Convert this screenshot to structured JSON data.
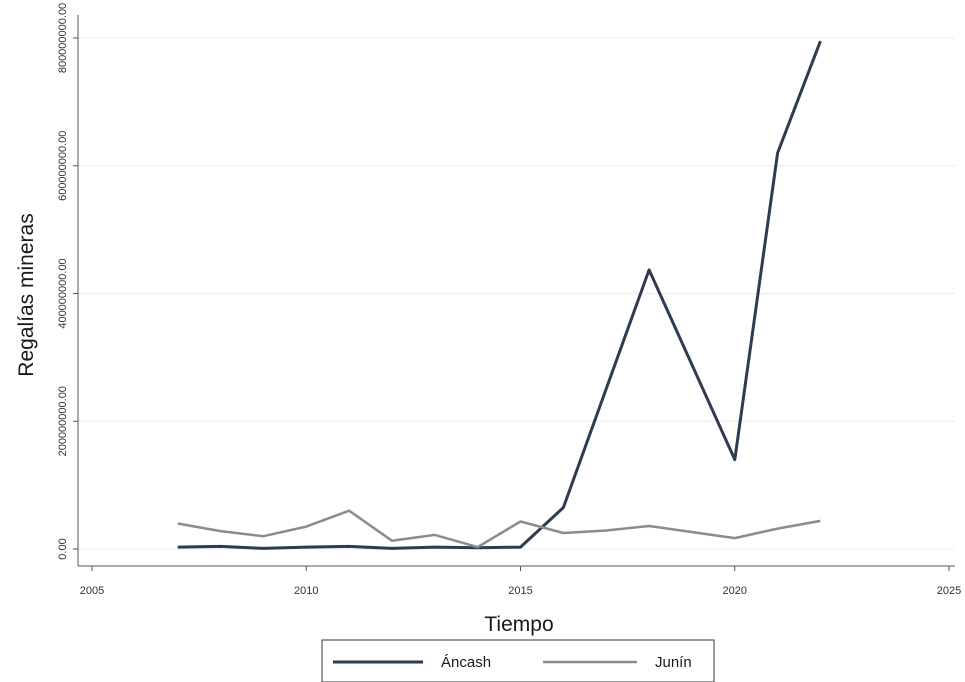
{
  "chart_data": {
    "type": "line",
    "title": "",
    "xlabel": "Tiempo",
    "ylabel": "Regalías mineras",
    "xlim": [
      2005,
      2025
    ],
    "ylim": [
      0,
      800000000
    ],
    "x_ticks": [
      2005,
      2010,
      2015,
      2020,
      2025
    ],
    "x_tick_labels": [
      "2005",
      "2010",
      "2015",
      "2020",
      "2025"
    ],
    "y_ticks": [
      0,
      200000000,
      400000000,
      600000000,
      800000000
    ],
    "y_tick_labels": [
      "0.00",
      "200000000.00",
      "400000000.00",
      "600000000.00",
      "800000000.00"
    ],
    "grid": true,
    "legend_position": "bottom",
    "series": [
      {
        "name": "Áncash",
        "color": "#2e3b55",
        "points": [
          [
            2007,
            3000000
          ],
          [
            2008,
            4000000
          ],
          [
            2009,
            1000000
          ],
          [
            2010,
            3000000
          ],
          [
            2011,
            4000000
          ],
          [
            2012,
            1000000
          ],
          [
            2013,
            3000000
          ],
          [
            2014,
            2000000
          ],
          [
            2015,
            3000000
          ],
          [
            2016,
            65000000
          ],
          [
            2018,
            437000000
          ],
          [
            2020,
            140000000
          ],
          [
            2021,
            620000000
          ],
          [
            2022,
            795000000
          ]
        ]
      },
      {
        "name": "Junín",
        "color": "#8c8c8c",
        "points": [
          [
            2007,
            40000000
          ],
          [
            2008,
            28000000
          ],
          [
            2009,
            20000000
          ],
          [
            2010,
            35000000
          ],
          [
            2011,
            60000000
          ],
          [
            2012,
            13000000
          ],
          [
            2013,
            22000000
          ],
          [
            2014,
            3000000
          ],
          [
            2015,
            43000000
          ],
          [
            2016,
            25000000
          ],
          [
            2017,
            29000000
          ],
          [
            2018,
            36000000
          ],
          [
            2020,
            17000000
          ],
          [
            2021,
            32000000
          ],
          [
            2022,
            44000000
          ]
        ]
      }
    ]
  }
}
